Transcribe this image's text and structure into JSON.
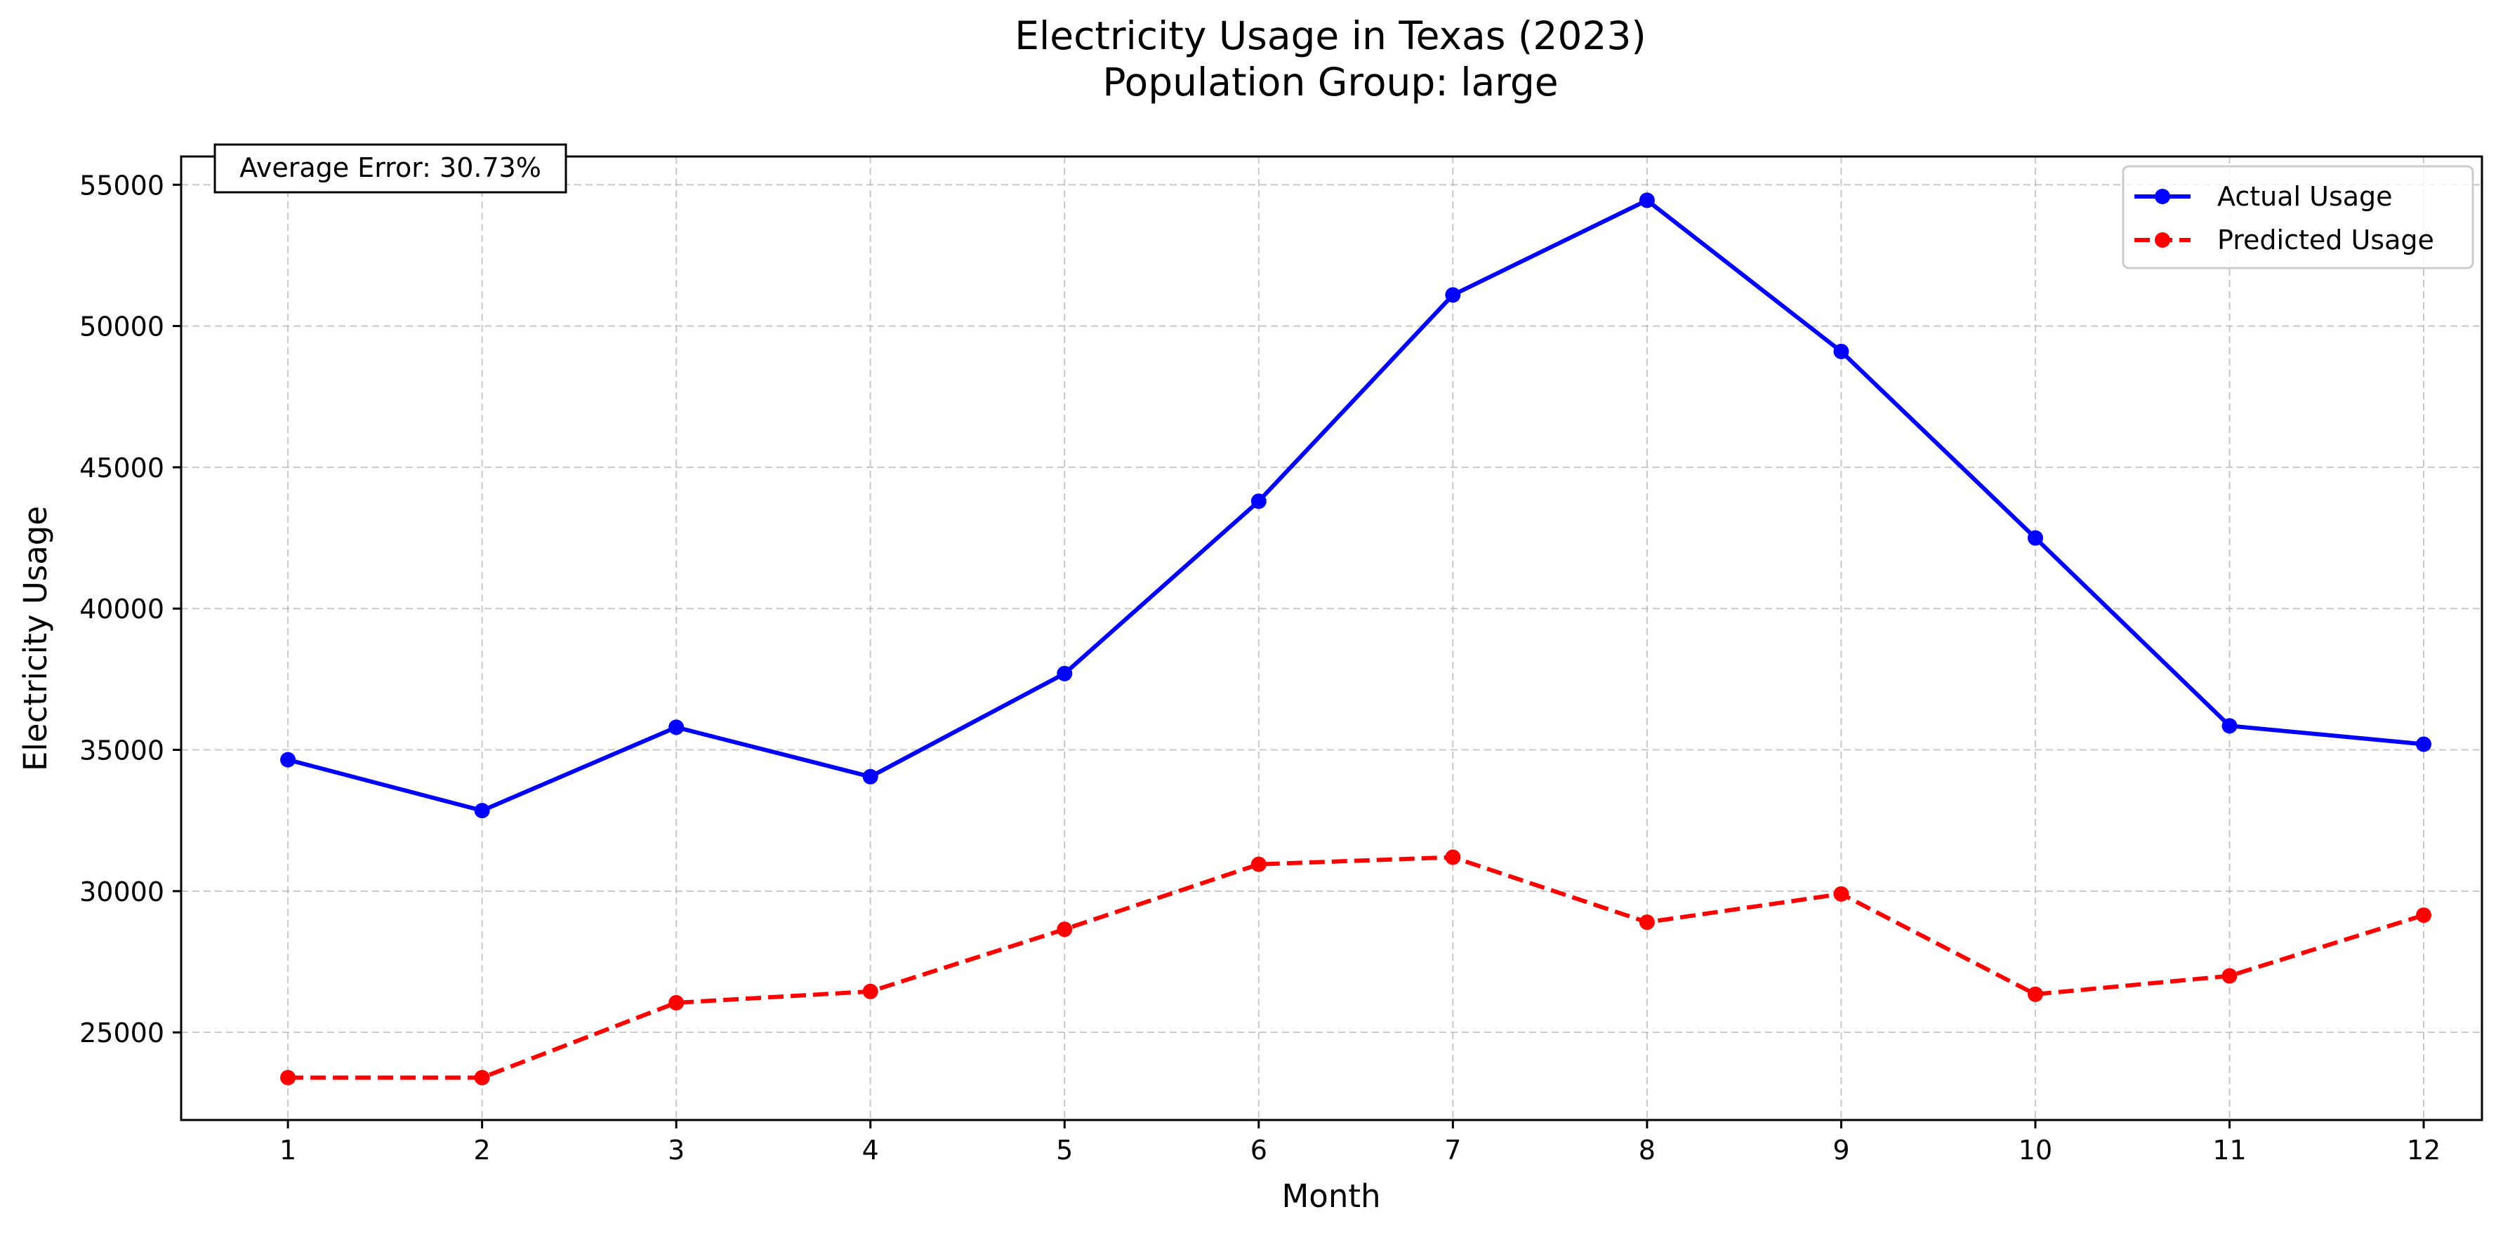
{
  "chart_data": {
    "type": "line",
    "title": "Electricity Usage in Texas (2023)",
    "subtitle": "Population Group: large",
    "xlabel": "Month",
    "ylabel": "Electricity Usage",
    "x": [
      1,
      2,
      3,
      4,
      5,
      6,
      7,
      8,
      9,
      10,
      11,
      12
    ],
    "xlim": [
      0.45,
      12.3
    ],
    "ylim": [
      21900,
      56000
    ],
    "yticks": [
      25000,
      30000,
      35000,
      40000,
      45000,
      50000,
      55000
    ],
    "grid": true,
    "legend_position": "top-right",
    "series": [
      {
        "name": "Actual Usage",
        "color": "#0000ff",
        "line_style": "solid",
        "marker": "circle",
        "values": [
          34650,
          32850,
          35800,
          34050,
          37700,
          43800,
          51100,
          54450,
          49100,
          42500,
          35850,
          35200
        ]
      },
      {
        "name": "Predicted Usage",
        "color": "#ff0000",
        "line_style": "dashed",
        "marker": "circle",
        "values": [
          23400,
          23400,
          26050,
          26450,
          28650,
          30950,
          31200,
          28900,
          29900,
          26350,
          27000,
          29150
        ]
      }
    ],
    "annotation": "Average Error: 30.73%"
  }
}
